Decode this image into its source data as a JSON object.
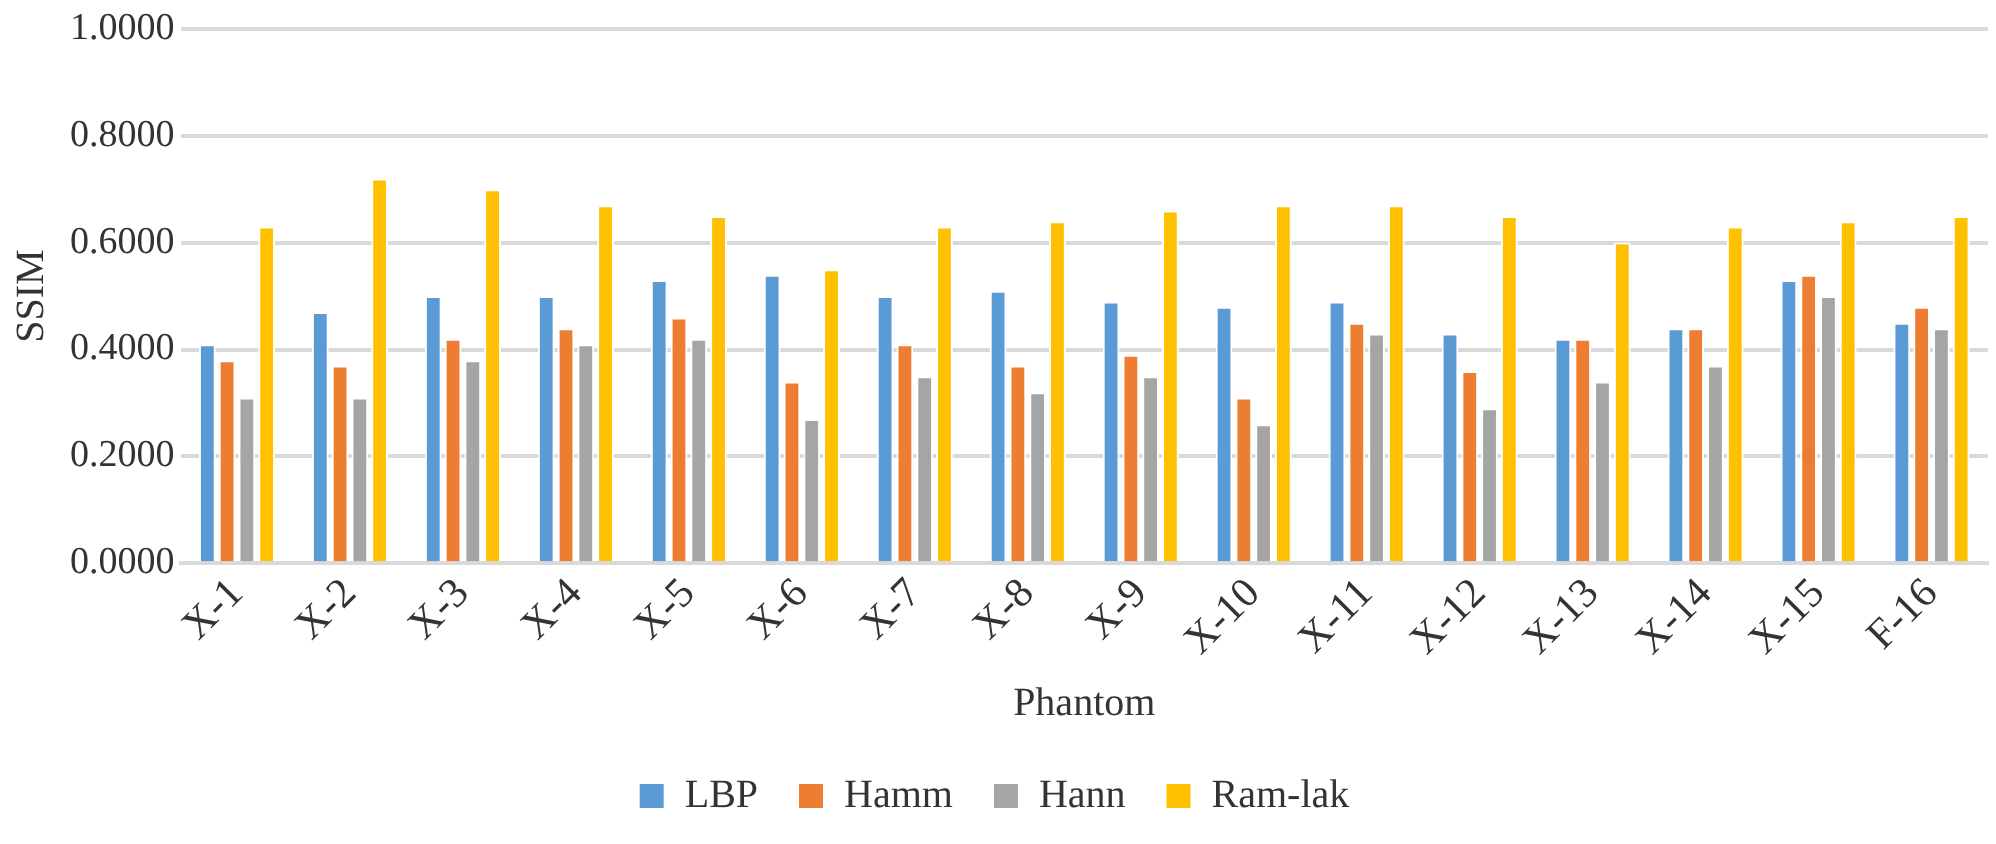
{
  "chart_data": {
    "type": "bar",
    "xlabel": "Phantom",
    "ylabel": "SSIM",
    "categories": [
      "X-1",
      "X-2",
      "X-3",
      "X-4",
      "X-5",
      "X-6",
      "X-7",
      "X-8",
      "X-9",
      "X-10",
      "X-11",
      "X-12",
      "X-13",
      "X-14",
      "X-15",
      "F-16"
    ],
    "series": [
      {
        "name": "LBP",
        "color": "#5b9bd5",
        "values": [
          0.41,
          0.47,
          0.5,
          0.5,
          0.53,
          0.54,
          0.5,
          0.51,
          0.49,
          0.48,
          0.49,
          0.43,
          0.42,
          0.44,
          0.53,
          0.45
        ]
      },
      {
        "name": "Hamm",
        "color": "#ed7d31",
        "values": [
          0.38,
          0.37,
          0.42,
          0.44,
          0.46,
          0.34,
          0.41,
          0.37,
          0.39,
          0.31,
          0.45,
          0.36,
          0.42,
          0.44,
          0.54,
          0.48
        ]
      },
      {
        "name": "Hann",
        "color": "#a5a5a5",
        "values": [
          0.31,
          0.31,
          0.38,
          0.41,
          0.42,
          0.27,
          0.35,
          0.32,
          0.35,
          0.26,
          0.43,
          0.29,
          0.34,
          0.37,
          0.5,
          0.44
        ]
      },
      {
        "name": "Ram-lak",
        "color": "#ffc000",
        "values": [
          0.63,
          0.72,
          0.7,
          0.67,
          0.65,
          0.55,
          0.63,
          0.64,
          0.66,
          0.67,
          0.67,
          0.65,
          0.6,
          0.63,
          0.64,
          0.65
        ]
      }
    ],
    "ylim": [
      0,
      1
    ],
    "yticks": [
      {
        "value": 0,
        "label": "0.0000"
      },
      {
        "value": 0.2,
        "label": "0.2000"
      },
      {
        "value": 0.4,
        "label": "0.4000"
      },
      {
        "value": 0.6,
        "label": "0.6000"
      },
      {
        "value": 0.8,
        "label": "0.8000"
      },
      {
        "value": 1,
        "label": "1.0000"
      }
    ],
    "grid": "y",
    "legend": "bottom"
  }
}
